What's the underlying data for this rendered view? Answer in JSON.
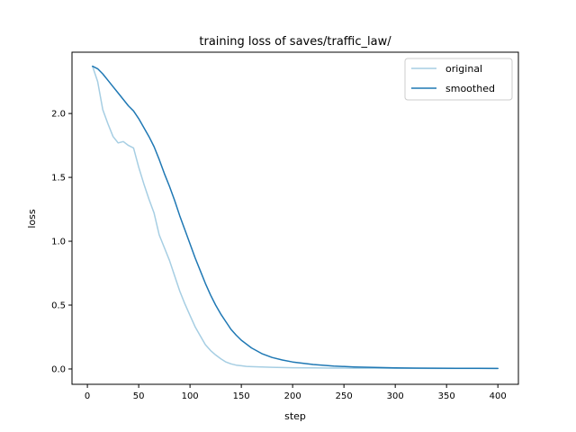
{
  "chart_data": {
    "type": "line",
    "title": "training loss of saves/traffic_law/",
    "xlabel": "step",
    "ylabel": "loss",
    "xlim": [
      -15,
      420
    ],
    "ylim": [
      -0.12,
      2.48
    ],
    "xticks": [
      0,
      50,
      100,
      150,
      200,
      250,
      300,
      350,
      400
    ],
    "yticks": [
      0.0,
      0.5,
      1.0,
      1.5,
      2.0
    ],
    "ytick_labels": [
      "0.0",
      "0.5",
      "1.0",
      "1.5",
      "2.0"
    ],
    "grid": false,
    "legend_position": "top-right",
    "series": [
      {
        "name": "original",
        "color": "#a6cee3",
        "x": [
          5,
          10,
          15,
          20,
          25,
          30,
          35,
          40,
          45,
          50,
          55,
          60,
          65,
          70,
          75,
          80,
          85,
          90,
          95,
          100,
          105,
          110,
          115,
          120,
          125,
          130,
          135,
          140,
          145,
          150,
          155,
          160,
          170,
          180,
          190,
          200,
          220,
          240,
          260,
          280,
          300,
          320,
          340,
          360,
          380,
          400
        ],
        "y": [
          2.37,
          2.25,
          2.03,
          1.92,
          1.82,
          1.77,
          1.78,
          1.75,
          1.73,
          1.58,
          1.45,
          1.33,
          1.22,
          1.05,
          0.95,
          0.85,
          0.73,
          0.61,
          0.51,
          0.42,
          0.33,
          0.26,
          0.19,
          0.145,
          0.11,
          0.08,
          0.055,
          0.04,
          0.03,
          0.025,
          0.02,
          0.018,
          0.015,
          0.013,
          0.011,
          0.01,
          0.008,
          0.007,
          0.006,
          0.006,
          0.005,
          0.005,
          0.004,
          0.004,
          0.004,
          0.004
        ]
      },
      {
        "name": "smoothed",
        "color": "#1f78b4",
        "x": [
          5,
          10,
          15,
          20,
          25,
          30,
          35,
          40,
          45,
          50,
          55,
          60,
          65,
          70,
          75,
          80,
          85,
          90,
          95,
          100,
          105,
          110,
          115,
          120,
          125,
          130,
          135,
          140,
          145,
          150,
          160,
          170,
          180,
          190,
          200,
          220,
          240,
          260,
          280,
          300,
          320,
          340,
          360,
          380,
          400
        ],
        "y": [
          2.37,
          2.35,
          2.31,
          2.26,
          2.21,
          2.16,
          2.11,
          2.06,
          2.02,
          1.96,
          1.89,
          1.82,
          1.74,
          1.64,
          1.53,
          1.43,
          1.32,
          1.2,
          1.09,
          0.98,
          0.87,
          0.77,
          0.67,
          0.58,
          0.5,
          0.43,
          0.37,
          0.31,
          0.265,
          0.225,
          0.165,
          0.12,
          0.09,
          0.07,
          0.055,
          0.035,
          0.023,
          0.016,
          0.012,
          0.009,
          0.007,
          0.006,
          0.005,
          0.005,
          0.004
        ]
      }
    ]
  }
}
